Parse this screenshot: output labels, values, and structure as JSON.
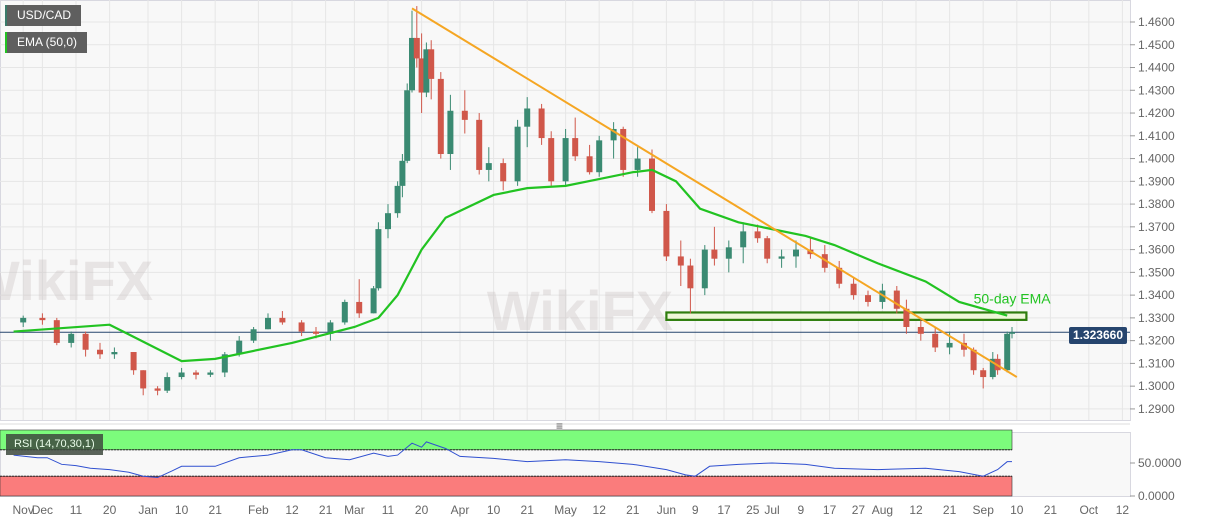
{
  "legend": {
    "symbol": "USD/CAD",
    "indicator": "EMA (50,0)",
    "rsi": "RSI (14,70,30,1)"
  },
  "current_price": "1.323660",
  "watermark": "WikiFX",
  "colors": {
    "up": "#3a8a72",
    "down": "#d0574a",
    "ema": "#22c322",
    "trendline": "#f5a623",
    "support": "#2e7d0e",
    "price_line": "#26456e",
    "rsi_line": "#3050d0",
    "rsi_overbought": "#7cfc7c",
    "rsi_oversold": "#fa7c7c"
  },
  "chart_data": [
    {
      "type": "candlestick",
      "title": "USD/CAD",
      "ylim": [
        1.285,
        1.468
      ],
      "grid": true,
      "y_ticks": [
        "1.4600",
        "1.4500",
        "1.4400",
        "1.4300",
        "1.4200",
        "1.4100",
        "1.4000",
        "1.3900",
        "1.3800",
        "1.3700",
        "1.3600",
        "1.3500",
        "1.3400",
        "1.3300",
        "1.3200",
        "1.3100",
        "1.3000",
        "1.2900"
      ],
      "x_ticks": [
        {
          "label": "Nov",
          "date": "2019-11-26"
        },
        {
          "label": "Dec",
          "date": "2019-12-02"
        },
        {
          "label": "11",
          "date": "2019-12-11"
        },
        {
          "label": "20",
          "date": "2019-12-20"
        },
        {
          "label": "Jan",
          "date": "2020-01-01"
        },
        {
          "label": "10",
          "date": "2020-01-10"
        },
        {
          "label": "21",
          "date": "2020-01-21"
        },
        {
          "label": "Feb",
          "date": "2020-02-03"
        },
        {
          "label": "12",
          "date": "2020-02-12"
        },
        {
          "label": "21",
          "date": "2020-02-21"
        },
        {
          "label": "Mar",
          "date": "2020-03-02"
        },
        {
          "label": "11",
          "date": "2020-03-11"
        },
        {
          "label": "20",
          "date": "2020-03-20"
        },
        {
          "label": "Apr",
          "date": "2020-04-01"
        },
        {
          "label": "10",
          "date": "2020-04-10"
        },
        {
          "label": "21",
          "date": "2020-04-21"
        },
        {
          "label": "May",
          "date": "2020-05-01"
        },
        {
          "label": "12",
          "date": "2020-05-12"
        },
        {
          "label": "21",
          "date": "2020-05-21"
        },
        {
          "label": "Jun",
          "date": "2020-06-01"
        },
        {
          "label": "9",
          "date": "2020-06-09"
        },
        {
          "label": "17",
          "date": "2020-06-17"
        },
        {
          "label": "25",
          "date": "2020-06-25"
        },
        {
          "label": "Jul",
          "date": "2020-07-01"
        },
        {
          "label": "9",
          "date": "2020-07-09"
        },
        {
          "label": "17",
          "date": "2020-07-17"
        },
        {
          "label": "27",
          "date": "2020-07-27"
        },
        {
          "label": "Aug",
          "date": "2020-08-03"
        },
        {
          "label": "12",
          "date": "2020-08-12"
        },
        {
          "label": "21",
          "date": "2020-08-21"
        },
        {
          "label": "Sep",
          "date": "2020-09-01"
        },
        {
          "label": "10",
          "date": "2020-09-10"
        },
        {
          "label": "21",
          "date": "2020-09-21"
        },
        {
          "label": "Oct",
          "date": "2020-10-01"
        },
        {
          "label": "12",
          "date": "2020-10-12"
        }
      ],
      "candles_ohlc": [
        [
          "2019-11-26",
          1.328,
          1.331,
          1.326,
          1.33
        ],
        [
          "2019-12-02",
          1.33,
          1.332,
          1.327,
          1.329
        ],
        [
          "2019-12-05",
          1.329,
          1.33,
          1.318,
          1.319
        ],
        [
          "2019-12-10",
          1.319,
          1.324,
          1.317,
          1.323
        ],
        [
          "2019-12-13",
          1.323,
          1.324,
          1.313,
          1.316
        ],
        [
          "2019-12-18",
          1.316,
          1.319,
          1.312,
          1.314
        ],
        [
          "2019-12-23",
          1.314,
          1.317,
          1.312,
          1.315
        ],
        [
          "2019-12-27",
          1.315,
          1.315,
          1.305,
          1.307
        ],
        [
          "2019-12-31",
          1.307,
          1.307,
          1.296,
          1.299
        ],
        [
          "2020-01-03",
          1.299,
          1.3,
          1.296,
          1.298
        ],
        [
          "2020-01-07",
          1.298,
          1.306,
          1.297,
          1.304
        ],
        [
          "2020-01-10",
          1.304,
          1.308,
          1.303,
          1.306
        ],
        [
          "2020-01-15",
          1.306,
          1.307,
          1.303,
          1.305
        ],
        [
          "2020-01-20",
          1.305,
          1.307,
          1.304,
          1.306
        ],
        [
          "2020-01-23",
          1.306,
          1.315,
          1.304,
          1.314
        ],
        [
          "2020-01-28",
          1.314,
          1.322,
          1.313,
          1.32
        ],
        [
          "2020-01-31",
          1.32,
          1.326,
          1.319,
          1.325
        ],
        [
          "2020-02-05",
          1.325,
          1.332,
          1.325,
          1.33
        ],
        [
          "2020-02-10",
          1.33,
          1.333,
          1.327,
          1.328
        ],
        [
          "2020-02-14",
          1.328,
          1.329,
          1.322,
          1.324
        ],
        [
          "2020-02-19",
          1.324,
          1.326,
          1.321,
          1.323
        ],
        [
          "2020-02-24",
          1.323,
          1.329,
          1.32,
          1.328
        ],
        [
          "2020-02-27",
          1.328,
          1.338,
          1.327,
          1.337
        ],
        [
          "2020-03-03",
          1.337,
          1.347,
          1.33,
          1.332
        ],
        [
          "2020-03-06",
          1.332,
          1.344,
          1.332,
          1.343
        ],
        [
          "2020-03-09",
          1.343,
          1.372,
          1.342,
          1.369
        ],
        [
          "2020-03-11",
          1.369,
          1.38,
          1.365,
          1.376
        ],
        [
          "2020-03-13",
          1.376,
          1.39,
          1.374,
          1.388
        ],
        [
          "2020-03-16",
          1.388,
          1.402,
          1.383,
          1.399
        ],
        [
          "2020-03-17",
          1.399,
          1.433,
          1.398,
          1.43
        ],
        [
          "2020-03-18",
          1.43,
          1.465,
          1.429,
          1.453
        ],
        [
          "2020-03-19",
          1.453,
          1.467,
          1.44,
          1.444
        ],
        [
          "2020-03-20",
          1.444,
          1.455,
          1.42,
          1.429
        ],
        [
          "2020-03-23",
          1.429,
          1.451,
          1.427,
          1.448
        ],
        [
          "2020-03-24",
          1.448,
          1.452,
          1.426,
          1.435
        ],
        [
          "2020-03-26",
          1.435,
          1.438,
          1.4,
          1.402
        ],
        [
          "2020-03-30",
          1.402,
          1.428,
          1.395,
          1.421
        ],
        [
          "2020-04-02",
          1.421,
          1.43,
          1.411,
          1.417
        ],
        [
          "2020-04-07",
          1.417,
          1.42,
          1.393,
          1.395
        ],
        [
          "2020-04-09",
          1.395,
          1.405,
          1.39,
          1.398
        ],
        [
          "2020-04-14",
          1.398,
          1.4,
          1.386,
          1.39
        ],
        [
          "2020-04-17",
          1.39,
          1.417,
          1.388,
          1.414
        ],
        [
          "2020-04-21",
          1.414,
          1.427,
          1.405,
          1.422
        ],
        [
          "2020-04-24",
          1.422,
          1.424,
          1.406,
          1.409
        ],
        [
          "2020-04-28",
          1.409,
          1.412,
          1.388,
          1.39
        ],
        [
          "2020-05-01",
          1.39,
          1.413,
          1.388,
          1.409
        ],
        [
          "2020-05-05",
          1.409,
          1.418,
          1.399,
          1.401
        ],
        [
          "2020-05-08",
          1.401,
          1.406,
          1.393,
          1.394
        ],
        [
          "2020-05-12",
          1.394,
          1.41,
          1.392,
          1.408
        ],
        [
          "2020-05-15",
          1.408,
          1.416,
          1.4,
          1.413
        ],
        [
          "2020-05-19",
          1.413,
          1.414,
          1.392,
          1.395
        ],
        [
          "2020-05-22",
          1.395,
          1.405,
          1.392,
          1.4
        ],
        [
          "2020-05-27",
          1.4,
          1.404,
          1.376,
          1.377
        ],
        [
          "2020-06-01",
          1.377,
          1.38,
          1.355,
          1.357
        ],
        [
          "2020-06-04",
          1.357,
          1.364,
          1.344,
          1.353
        ],
        [
          "2020-06-08",
          1.353,
          1.356,
          1.332,
          1.343
        ],
        [
          "2020-06-11",
          1.343,
          1.362,
          1.34,
          1.36
        ],
        [
          "2020-06-15",
          1.36,
          1.37,
          1.353,
          1.356
        ],
        [
          "2020-06-18",
          1.356,
          1.364,
          1.35,
          1.361
        ],
        [
          "2020-06-23",
          1.361,
          1.372,
          1.354,
          1.368
        ],
        [
          "2020-06-26",
          1.368,
          1.371,
          1.363,
          1.365
        ],
        [
          "2020-06-30",
          1.365,
          1.366,
          1.354,
          1.356
        ],
        [
          "2020-07-03",
          1.356,
          1.36,
          1.352,
          1.357
        ],
        [
          "2020-07-08",
          1.357,
          1.364,
          1.352,
          1.36
        ],
        [
          "2020-07-13",
          1.36,
          1.365,
          1.356,
          1.358
        ],
        [
          "2020-07-16",
          1.358,
          1.362,
          1.35,
          1.352
        ],
        [
          "2020-07-21",
          1.352,
          1.355,
          1.343,
          1.345
        ],
        [
          "2020-07-24",
          1.345,
          1.348,
          1.338,
          1.34
        ],
        [
          "2020-07-29",
          1.34,
          1.342,
          1.335,
          1.337
        ],
        [
          "2020-08-03",
          1.337,
          1.345,
          1.334,
          1.342
        ],
        [
          "2020-08-06",
          1.342,
          1.344,
          1.332,
          1.334
        ],
        [
          "2020-08-10",
          1.334,
          1.338,
          1.323,
          1.326
        ],
        [
          "2020-08-13",
          1.326,
          1.329,
          1.32,
          1.323
        ],
        [
          "2020-08-18",
          1.323,
          1.326,
          1.315,
          1.317
        ],
        [
          "2020-08-21",
          1.317,
          1.324,
          1.314,
          1.319
        ],
        [
          "2020-08-26",
          1.319,
          1.323,
          1.313,
          1.316
        ],
        [
          "2020-08-28",
          1.316,
          1.317,
          1.305,
          1.307
        ],
        [
          "2020-09-01",
          1.307,
          1.308,
          1.299,
          1.304
        ],
        [
          "2020-09-03",
          1.304,
          1.315,
          1.303,
          1.312
        ],
        [
          "2020-09-04",
          1.312,
          1.314,
          1.305,
          1.307
        ],
        [
          "2020-09-08",
          1.307,
          1.324,
          1.306,
          1.323
        ],
        [
          "2020-09-09",
          1.323,
          1.326,
          1.321,
          1.3237
        ]
      ],
      "ema_50": [
        [
          "2019-11-22",
          1.324
        ],
        [
          "2019-12-20",
          1.327
        ],
        [
          "2020-01-10",
          1.311
        ],
        [
          "2020-01-21",
          1.312
        ],
        [
          "2020-02-12",
          1.319
        ],
        [
          "2020-03-02",
          1.326
        ],
        [
          "2020-03-09",
          1.33
        ],
        [
          "2020-03-13",
          1.34
        ],
        [
          "2020-03-20",
          1.36
        ],
        [
          "2020-03-27",
          1.374
        ],
        [
          "2020-04-10",
          1.384
        ],
        [
          "2020-04-21",
          1.387
        ],
        [
          "2020-05-01",
          1.388
        ],
        [
          "2020-05-12",
          1.391
        ],
        [
          "2020-05-21",
          1.394
        ],
        [
          "2020-05-27",
          1.395
        ],
        [
          "2020-06-03",
          1.39
        ],
        [
          "2020-06-10",
          1.378
        ],
        [
          "2020-06-22",
          1.372
        ],
        [
          "2020-07-01",
          1.369
        ],
        [
          "2020-07-10",
          1.366
        ],
        [
          "2020-07-20",
          1.362
        ],
        [
          "2020-07-31",
          1.354
        ],
        [
          "2020-08-14",
          1.346
        ],
        [
          "2020-08-25",
          1.337
        ],
        [
          "2020-09-08",
          1.331
        ]
      ],
      "trendline": [
        [
          "2020-03-18",
          1.466
        ],
        [
          "2020-09-10",
          1.304
        ]
      ],
      "support_zone": {
        "from": "2020-06-01",
        "to": "2020-09-14",
        "low": 1.33,
        "high": 1.3315
      },
      "annotations": [
        {
          "text": "50-day EMA",
          "date": "2020-08-28",
          "price": 1.338
        }
      ],
      "last_price": 1.32366
    },
    {
      "type": "line",
      "title": "RSI (14,70,30,1)",
      "ylim": [
        0,
        100
      ],
      "levels": [
        70,
        30
      ],
      "y_ticks": [
        "50.0000",
        "0.0000"
      ],
      "values": [
        [
          "2019-11-22",
          62
        ],
        [
          "2019-11-29",
          58
        ],
        [
          "2019-12-03",
          58
        ],
        [
          "2019-12-06",
          48
        ],
        [
          "2019-12-11",
          46
        ],
        [
          "2019-12-16",
          42
        ],
        [
          "2019-12-20",
          40
        ],
        [
          "2019-12-26",
          36
        ],
        [
          "2019-12-31",
          30
        ],
        [
          "2020-01-03",
          28
        ],
        [
          "2020-01-08",
          38
        ],
        [
          "2020-01-10",
          45
        ],
        [
          "2020-01-21",
          45
        ],
        [
          "2020-01-28",
          58
        ],
        [
          "2020-02-05",
          62
        ],
        [
          "2020-02-12",
          70
        ],
        [
          "2020-02-14",
          70
        ],
        [
          "2020-02-21",
          58
        ],
        [
          "2020-02-28",
          55
        ],
        [
          "2020-03-06",
          65
        ],
        [
          "2020-03-11",
          60
        ],
        [
          "2020-03-13",
          62
        ],
        [
          "2020-03-18",
          80
        ],
        [
          "2020-03-20",
          74
        ],
        [
          "2020-03-23",
          82
        ],
        [
          "2020-03-27",
          72
        ],
        [
          "2020-04-01",
          60
        ],
        [
          "2020-04-10",
          57
        ],
        [
          "2020-04-21",
          52
        ],
        [
          "2020-05-01",
          55
        ],
        [
          "2020-05-12",
          52
        ],
        [
          "2020-05-21",
          48
        ],
        [
          "2020-06-01",
          40
        ],
        [
          "2020-06-05",
          32
        ],
        [
          "2020-06-09",
          30
        ],
        [
          "2020-06-12",
          45
        ],
        [
          "2020-06-22",
          48
        ],
        [
          "2020-07-01",
          50
        ],
        [
          "2020-07-10",
          48
        ],
        [
          "2020-07-20",
          42
        ],
        [
          "2020-07-31",
          40
        ],
        [
          "2020-08-14",
          42
        ],
        [
          "2020-08-25",
          37
        ],
        [
          "2020-09-01",
          30
        ],
        [
          "2020-09-04",
          40
        ],
        [
          "2020-09-08",
          52
        ],
        [
          "2020-09-09",
          52
        ]
      ]
    }
  ]
}
